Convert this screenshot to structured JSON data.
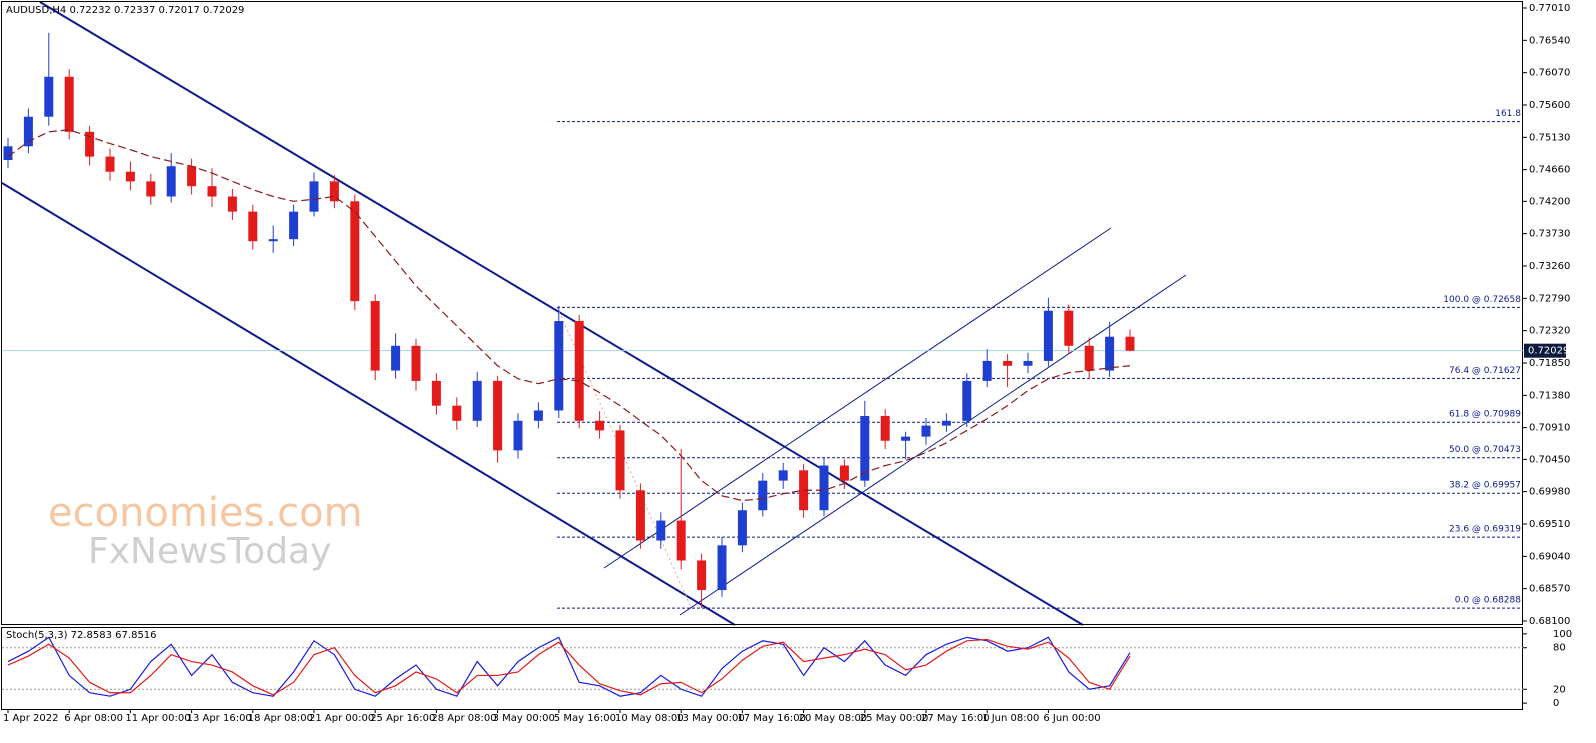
{
  "chart_data": [
    {
      "type": "candlestick",
      "title": "AUDUSD,H4  0.72232 0.72337 0.72017 0.72029",
      "categories": [
        "1 Apr 2022",
        null,
        null,
        "6 Apr 08:00",
        null,
        null,
        "11 Apr 00:00",
        null,
        null,
        "13 Apr 16:00",
        null,
        null,
        "18 Apr 08:00",
        null,
        null,
        "21 Apr 00:00",
        null,
        null,
        "25 Apr 16:00",
        null,
        null,
        "28 Apr 08:00",
        null,
        null,
        "3 May 00:00",
        null,
        null,
        "5 May 16:00",
        null,
        null,
        "10 May 08:00",
        null,
        null,
        "13 May 00:00",
        null,
        null,
        "17 May 16:00",
        null,
        null,
        "20 May 08:00",
        null,
        null,
        "25 May 00:00",
        null,
        null,
        "27 May 16:00",
        null,
        null,
        "1 Jun 08:00",
        null,
        null,
        "6 Jun 00:00",
        null,
        null,
        null,
        null
      ],
      "open": [
        0.748,
        0.75,
        0.7543,
        0.7601,
        0.7521,
        0.7485,
        0.7463,
        0.7449,
        0.7427,
        0.7471,
        0.7442,
        0.7427,
        0.7405,
        0.7362,
        0.7365,
        0.7405,
        0.7449,
        0.742,
        0.7275,
        0.7174,
        0.721,
        0.7159,
        0.7123,
        0.7101,
        0.7159,
        0.7058,
        0.7101,
        0.7116,
        0.7246,
        0.7101,
        0.7087,
        0.7,
        0.6927,
        0.6956,
        0.6898,
        0.6855,
        0.692,
        0.6971,
        0.7014,
        0.7029,
        0.6971,
        0.7036,
        0.7014,
        0.7108,
        0.7072,
        0.7078,
        0.7094,
        0.7101,
        0.7159,
        0.7188,
        0.7181,
        0.7188,
        0.7261,
        0.721,
        0.7174,
        0.72232
      ],
      "high": [
        0.7512,
        0.7555,
        0.7665,
        0.7612,
        0.753,
        0.7497,
        0.7478,
        0.746,
        0.749,
        0.7482,
        0.7468,
        0.7438,
        0.7415,
        0.7385,
        0.7415,
        0.7462,
        0.7458,
        0.743,
        0.7285,
        0.7228,
        0.722,
        0.717,
        0.7135,
        0.7172,
        0.7166,
        0.7112,
        0.7128,
        0.7268,
        0.7255,
        0.7115,
        0.7095,
        0.701,
        0.6968,
        0.706,
        0.6908,
        0.6932,
        0.6982,
        0.7025,
        0.704,
        0.7038,
        0.7048,
        0.7045,
        0.713,
        0.7118,
        0.7085,
        0.7105,
        0.7112,
        0.717,
        0.7205,
        0.7198,
        0.72,
        0.728,
        0.727,
        0.7222,
        0.7245,
        0.72337
      ],
      "low": [
        0.7468,
        0.749,
        0.753,
        0.751,
        0.7472,
        0.745,
        0.7436,
        0.7415,
        0.7418,
        0.743,
        0.7412,
        0.7393,
        0.735,
        0.7345,
        0.7355,
        0.7398,
        0.741,
        0.7262,
        0.716,
        0.7162,
        0.7145,
        0.711,
        0.7088,
        0.7092,
        0.704,
        0.7046,
        0.709,
        0.7105,
        0.709,
        0.7075,
        0.6988,
        0.6915,
        0.6915,
        0.6885,
        0.6829,
        0.6845,
        0.691,
        0.6962,
        0.7002,
        0.696,
        0.6962,
        0.7002,
        0.7005,
        0.706,
        0.7045,
        0.7066,
        0.7085,
        0.7092,
        0.715,
        0.715,
        0.717,
        0.718,
        0.7198,
        0.7162,
        0.7165,
        0.72017
      ],
      "close": [
        0.75,
        0.7543,
        0.7601,
        0.7521,
        0.7485,
        0.7463,
        0.7449,
        0.7427,
        0.7471,
        0.7442,
        0.7427,
        0.7405,
        0.7362,
        0.7365,
        0.7405,
        0.7449,
        0.742,
        0.7275,
        0.7174,
        0.721,
        0.7159,
        0.7123,
        0.7101,
        0.7159,
        0.7058,
        0.7101,
        0.7116,
        0.7246,
        0.7101,
        0.7087,
        0.7,
        0.6927,
        0.6956,
        0.6898,
        0.6855,
        0.692,
        0.6971,
        0.7014,
        0.7029,
        0.6971,
        0.7036,
        0.7014,
        0.7108,
        0.7072,
        0.7078,
        0.7094,
        0.7101,
        0.7159,
        0.7188,
        0.7181,
        0.7188,
        0.7261,
        0.721,
        0.7174,
        0.72232,
        0.72029
      ],
      "up_color": "#1f3fd0",
      "down_color": "#e31b1b",
      "moving_average": {
        "color": "#8b1a1a",
        "values": [
          0.7485,
          0.7507,
          0.7521,
          0.7524,
          0.7514,
          0.7504,
          0.7495,
          0.7485,
          0.7478,
          0.7471,
          0.7461,
          0.7449,
          0.7437,
          0.7427,
          0.742,
          0.7423,
          0.7427,
          0.7405,
          0.7369,
          0.7333,
          0.7297,
          0.7268,
          0.7239,
          0.721,
          0.7181,
          0.7162,
          0.7155,
          0.7162,
          0.7159,
          0.7142,
          0.7123,
          0.7101,
          0.708,
          0.705,
          0.7014,
          0.6992,
          0.6985,
          0.6988,
          0.6995,
          0.7,
          0.7,
          0.701,
          0.7026,
          0.7036,
          0.7043,
          0.7055,
          0.7069,
          0.7087,
          0.7104,
          0.7123,
          0.7145,
          0.7162,
          0.7171,
          0.7174,
          0.7178,
          0.7181
        ]
      },
      "ylim": [
        0.68042,
        0.77097
      ],
      "yticks": [
        {
          "value": 0.7701,
          "label": "0.77010"
        },
        {
          "value": 0.7654,
          "label": "0.76540"
        },
        {
          "value": 0.7607,
          "label": "0.76070"
        },
        {
          "value": 0.756,
          "label": "0.75600"
        },
        {
          "value": 0.7513,
          "label": "0.75130"
        },
        {
          "value": 0.7466,
          "label": "0.74660"
        },
        {
          "value": 0.742,
          "label": "0.74200"
        },
        {
          "value": 0.7373,
          "label": "0.73730"
        },
        {
          "value": 0.7326,
          "label": "0.73260"
        },
        {
          "value": 0.7279,
          "label": "0.72790"
        },
        {
          "value": 0.7232,
          "label": "0.72320"
        },
        {
          "value": 0.7185,
          "label": "0.71850"
        },
        {
          "value": 0.7138,
          "label": "0.71380"
        },
        {
          "value": 0.7091,
          "label": "0.70910"
        },
        {
          "value": 0.7045,
          "label": "0.70450"
        },
        {
          "value": 0.6998,
          "label": "0.69980"
        },
        {
          "value": 0.6951,
          "label": "0.69510"
        },
        {
          "value": 0.6904,
          "label": "0.69040"
        },
        {
          "value": 0.6857,
          "label": "0.68570"
        },
        {
          "value": 0.681,
          "label": "0.68100"
        }
      ],
      "last_price": 0.72029,
      "fibonacci": [
        {
          "label": "161.8",
          "value": 0.75359
        },
        {
          "label": "100.0 @ 0.72658",
          "value": 0.72658
        },
        {
          "label": "76.4 @ 0.71627",
          "value": 0.71627
        },
        {
          "label": "61.8 @ 0.70989",
          "value": 0.70989
        },
        {
          "label": "50.0 @ 0.70473",
          "value": 0.70473
        },
        {
          "label": "38.2 @ 0.69957",
          "value": 0.69957
        },
        {
          "label": "23.6 @ 0.69319",
          "value": 0.69319
        },
        {
          "label": "0.0 @ 0.68288",
          "value": 0.68288
        }
      ],
      "watermark": [
        "economies.com",
        "FxNewsToday"
      ]
    },
    {
      "type": "line",
      "title": "Stoch(5,3,3) 72.8583 67.8516",
      "series": [
        {
          "color": "#1a1adb",
          "values": [
            60,
            75,
            95,
            40,
            15,
            10,
            20,
            60,
            85,
            40,
            70,
            30,
            15,
            10,
            45,
            90,
            70,
            20,
            10,
            35,
            55,
            20,
            10,
            60,
            25,
            60,
            80,
            95,
            30,
            25,
            10,
            15,
            40,
            20,
            10,
            50,
            75,
            90,
            85,
            40,
            80,
            60,
            90,
            55,
            40,
            70,
            85,
            95,
            90,
            75,
            80,
            95,
            45,
            20,
            25,
            72.8583
          ]
        },
        {
          "color": "#e31b1b",
          "values": [
            55,
            68,
            85,
            65,
            30,
            15,
            15,
            40,
            70,
            60,
            55,
            45,
            25,
            12,
            30,
            70,
            80,
            40,
            15,
            25,
            45,
            35,
            15,
            40,
            40,
            45,
            70,
            88,
            55,
            28,
            18,
            12,
            28,
            30,
            15,
            35,
            62,
            82,
            88,
            60,
            65,
            70,
            78,
            70,
            48,
            55,
            75,
            90,
            92,
            82,
            78,
            88,
            65,
            30,
            20,
            67.8516
          ]
        }
      ],
      "ylim": [
        -8.5,
        108.5
      ],
      "yticks": [
        0,
        20,
        80,
        100
      ]
    }
  ]
}
